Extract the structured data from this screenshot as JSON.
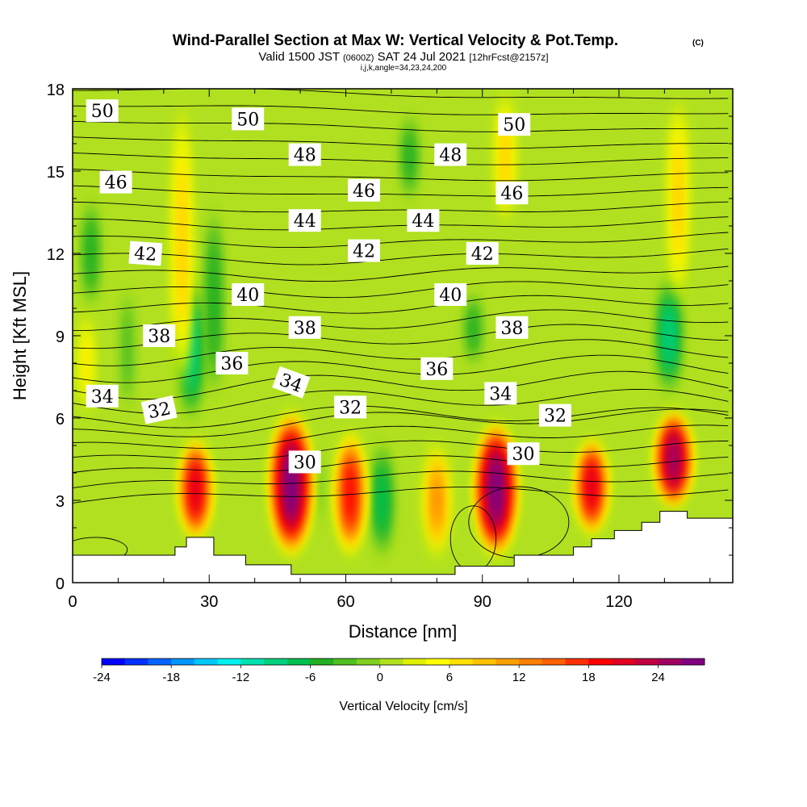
{
  "chart_data": {
    "type": "heatmap",
    "title": "Wind-Parallel Section at Max W: Vertical Velocity & Pot.Temp.",
    "copyright": "(C)",
    "subtitle_valid": "Valid 1500 JST",
    "subtitle_utc": "(0600Z)",
    "subtitle_date": "SAT 24 Jul 2021",
    "subtitle_fcst": "[12hrFcst@2157z]",
    "subtitle_params": "i,j,k,angle=34,23,24,200",
    "xlabel": "Distance [nm]",
    "ylabel": "Height [Kft MSL]",
    "xlim": [
      0,
      145
    ],
    "ylim": [
      0,
      18
    ],
    "x_ticks": [
      "0",
      "30",
      "60",
      "90",
      "120"
    ],
    "x_tick_values": [
      0,
      30,
      60,
      90,
      120
    ],
    "y_ticks": [
      "0",
      "3",
      "6",
      "9",
      "12",
      "15",
      "18"
    ],
    "y_tick_values": [
      0,
      3,
      6,
      9,
      12,
      15,
      18
    ],
    "colorbar": {
      "label": "Vertical Velocity [cm/s]",
      "min": -24,
      "max": 28,
      "step": 2,
      "tick_labels": [
        "-24",
        "-18",
        "-12",
        "-6",
        "0",
        "6",
        "12",
        "18",
        "24"
      ],
      "tick_values": [
        -24,
        -18,
        -12,
        -6,
        0,
        6,
        12,
        18,
        24
      ],
      "colors": [
        "#0000ff",
        "#0032ff",
        "#0064ff",
        "#0096ff",
        "#00c8ff",
        "#00f0f0",
        "#00e0b0",
        "#00d080",
        "#00c050",
        "#20b020",
        "#50c020",
        "#80d020",
        "#b0e020",
        "#e0f000",
        "#ffff00",
        "#ffe000",
        "#ffc000",
        "#ffa000",
        "#ff8000",
        "#ff6000",
        "#ff3000",
        "#ff0000",
        "#e00020",
        "#c00040",
        "#a00060",
        "#800080"
      ]
    },
    "updrafts": [
      {
        "x": 3,
        "ymin": 6.0,
        "ymax": 10.0,
        "w": 6
      },
      {
        "x": 24,
        "ymin": 6.5,
        "ymax": 18.0,
        "w": 8
      },
      {
        "x": 27,
        "ymin": 1.6,
        "ymax": 5.2,
        "w": 20
      },
      {
        "x": 48,
        "ymin": 1.0,
        "ymax": 6.2,
        "w": 27
      },
      {
        "x": 61,
        "ymin": 1.0,
        "ymax": 5.5,
        "w": 18
      },
      {
        "x": 80,
        "ymin": 1.0,
        "ymax": 5.0,
        "w": 12
      },
      {
        "x": 93,
        "ymin": 1.0,
        "ymax": 5.8,
        "w": 27
      },
      {
        "x": 95,
        "ymin": 13.0,
        "ymax": 18.0,
        "w": 8
      },
      {
        "x": 114,
        "ymin": 1.8,
        "ymax": 5.2,
        "w": 20
      },
      {
        "x": 132,
        "ymin": 2.8,
        "ymax": 6.2,
        "w": 24
      },
      {
        "x": 133,
        "ymin": 10.0,
        "ymax": 18.0,
        "w": 8
      }
    ],
    "downdrafts": [
      {
        "x": 4,
        "ymin": 10.0,
        "ymax": 14.0,
        "w": -6
      },
      {
        "x": 12,
        "ymin": 6.0,
        "ymax": 11.0,
        "w": -4
      },
      {
        "x": 26,
        "ymin": 6.0,
        "ymax": 11.0,
        "w": -10
      },
      {
        "x": 31,
        "ymin": 6.5,
        "ymax": 14.0,
        "w": -6
      },
      {
        "x": 54,
        "ymin": 2.0,
        "ymax": 5.0,
        "w": -2
      },
      {
        "x": 68,
        "ymin": 1.0,
        "ymax": 5.0,
        "w": -8
      },
      {
        "x": 74,
        "ymin": 14.0,
        "ymax": 17.0,
        "w": -6
      },
      {
        "x": 88,
        "ymin": 8.0,
        "ymax": 10.5,
        "w": -6
      },
      {
        "x": 131,
        "ymin": 7.0,
        "ymax": 11.0,
        "w": -10
      }
    ],
    "terrain": [
      [
        0,
        1.0
      ],
      [
        22.5,
        1.0
      ],
      [
        22.5,
        1.3
      ],
      [
        25,
        1.3
      ],
      [
        25,
        1.65
      ],
      [
        31,
        1.65
      ],
      [
        31,
        1.0
      ],
      [
        38,
        1.0
      ],
      [
        38,
        0.65
      ],
      [
        48,
        0.65
      ],
      [
        48,
        0.3
      ],
      [
        84,
        0.3
      ],
      [
        84,
        0.6
      ],
      [
        97,
        0.6
      ],
      [
        97,
        1.0
      ],
      [
        110,
        1.0
      ],
      [
        110,
        1.3
      ],
      [
        114,
        1.3
      ],
      [
        114,
        1.6
      ],
      [
        119,
        1.6
      ],
      [
        119,
        1.9
      ],
      [
        125,
        1.9
      ],
      [
        125,
        2.2
      ],
      [
        129,
        2.2
      ],
      [
        129,
        2.6
      ],
      [
        135,
        2.6
      ],
      [
        135,
        2.35
      ],
      [
        145,
        2.35
      ]
    ],
    "theta_labels": [
      {
        "text": "50",
        "x": 6.5,
        "y": 17.2,
        "angle": 0
      },
      {
        "text": "50",
        "x": 38.5,
        "y": 16.9,
        "angle": 0
      },
      {
        "text": "48",
        "x": 51,
        "y": 15.6,
        "angle": 0
      },
      {
        "text": "48",
        "x": 83,
        "y": 15.6,
        "angle": 0
      },
      {
        "text": "50",
        "x": 97,
        "y": 16.7,
        "angle": 0
      },
      {
        "text": "46",
        "x": 9.5,
        "y": 14.6,
        "angle": 0
      },
      {
        "text": "46",
        "x": 64,
        "y": 14.3,
        "angle": 0
      },
      {
        "text": "46",
        "x": 96.5,
        "y": 14.2,
        "angle": 0
      },
      {
        "text": "44",
        "x": 51,
        "y": 13.2,
        "angle": 0
      },
      {
        "text": "44",
        "x": 77,
        "y": 13.2,
        "angle": 0
      },
      {
        "text": "42",
        "x": 16,
        "y": 12.0,
        "angle": 4
      },
      {
        "text": "42",
        "x": 64,
        "y": 12.1,
        "angle": 0
      },
      {
        "text": "42",
        "x": 90,
        "y": 12.0,
        "angle": 0
      },
      {
        "text": "40",
        "x": 38.5,
        "y": 10.5,
        "angle": 0
      },
      {
        "text": "40",
        "x": 83,
        "y": 10.5,
        "angle": 0
      },
      {
        "text": "38",
        "x": 19,
        "y": 9.0,
        "angle": 0
      },
      {
        "text": "38",
        "x": 51,
        "y": 9.3,
        "angle": 0
      },
      {
        "text": "38",
        "x": 96.5,
        "y": 9.3,
        "angle": 0
      },
      {
        "text": "36",
        "x": 35,
        "y": 8.0,
        "angle": 0
      },
      {
        "text": "36",
        "x": 80,
        "y": 7.8,
        "angle": 0
      },
      {
        "text": "34",
        "x": 6.5,
        "y": 6.8,
        "angle": 0
      },
      {
        "text": "34",
        "x": 48,
        "y": 7.3,
        "angle": 20
      },
      {
        "text": "34",
        "x": 94,
        "y": 6.9,
        "angle": 0
      },
      {
        "text": "32",
        "x": 19,
        "y": 6.3,
        "angle": -12
      },
      {
        "text": "32",
        "x": 61,
        "y": 6.4,
        "angle": 0
      },
      {
        "text": "32",
        "x": 106,
        "y": 6.1,
        "angle": 0
      },
      {
        "text": "30",
        "x": 51,
        "y": 4.4,
        "angle": 0
      },
      {
        "text": "30",
        "x": 99,
        "y": 4.7,
        "angle": 0
      }
    ]
  }
}
